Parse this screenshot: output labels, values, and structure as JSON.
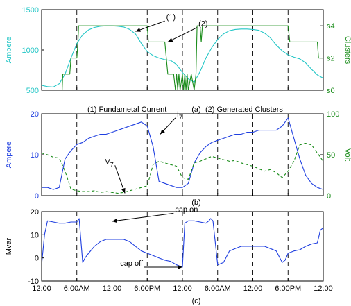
{
  "figure_captions": {
    "a": "(a)",
    "b": "(b)",
    "c": "(c)",
    "legend_note": [
      "(1) Fundametal Current",
      "(2) Generated Clusters"
    ]
  },
  "time_ticks": [
    "12:00",
    "6:00AM",
    "12:00",
    "6:00PM",
    "12:00",
    "6:00AM",
    "12:00",
    "6:00PM",
    "12:00"
  ],
  "colors": {
    "cyan": "#22c6c6",
    "green": "#1a8c1a",
    "blue": "#1f3fe0",
    "axis": "#000000"
  },
  "chart_data": [
    {
      "type": "line",
      "panel": "a",
      "x_unit": "hours",
      "xlim": [
        0,
        48
      ],
      "ylabel": "Ampere",
      "ylim": [
        500,
        1500
      ],
      "yticks": [
        500,
        1000,
        1500
      ],
      "ylabel_right": "Clusters",
      "y2lim": [
        0,
        5
      ],
      "y2ticks": [
        {
          "v": 0,
          "label": "s0"
        },
        {
          "v": 2,
          "label": "s2"
        },
        {
          "v": 4,
          "label": "s4"
        }
      ],
      "vlines": [
        6,
        12,
        18,
        24,
        30,
        36,
        42
      ],
      "series": [
        {
          "color": "cyan",
          "axis": "left",
          "x": [
            0,
            1,
            2,
            3,
            4,
            5,
            6,
            7,
            8,
            9,
            10,
            11,
            12,
            13,
            14,
            15,
            16,
            17,
            18,
            19,
            20,
            21,
            22,
            23,
            24,
            25,
            26,
            27,
            28,
            29,
            30,
            31,
            32,
            33,
            34,
            35,
            36,
            37,
            38,
            39,
            40,
            41,
            42,
            43,
            44,
            45,
            46,
            47,
            48
          ],
          "y": [
            560,
            545,
            540,
            580,
            700,
            900,
            1080,
            1190,
            1250,
            1280,
            1295,
            1300,
            1300,
            1295,
            1285,
            1255,
            1200,
            1080,
            980,
            930,
            900,
            880,
            870,
            820,
            720,
            640,
            600,
            730,
            900,
            1030,
            1130,
            1200,
            1240,
            1255,
            1260,
            1260,
            1255,
            1245,
            1210,
            1150,
            1060,
            990,
            940,
            910,
            890,
            840,
            760,
            690,
            650
          ]
        },
        {
          "color": "green",
          "axis": "right",
          "x": [
            0,
            3.5,
            3.6,
            4.8,
            5,
            6,
            6.2,
            6.3,
            18,
            18.2,
            18.4,
            21,
            21.5,
            22.5,
            22.8,
            23,
            23.2,
            23.4,
            23.6,
            24,
            24.2,
            24.4,
            24.6,
            24.8,
            25,
            25.5,
            26,
            26.3,
            26.5,
            27,
            27.2,
            27.4,
            42,
            42.3,
            42.5,
            47,
            47.2,
            48
          ],
          "y": [
            0,
            0,
            1,
            1,
            2,
            2,
            3,
            4,
            4,
            3,
            3,
            3,
            1,
            1,
            0,
            1,
            0,
            1,
            0,
            1,
            0,
            1,
            0,
            1,
            0,
            1,
            0,
            1,
            4,
            4,
            3,
            4,
            4,
            3,
            3,
            3,
            2,
            2
          ]
        }
      ],
      "annotations": [
        {
          "label": "(1)",
          "target": [
            16,
            1230
          ],
          "axis": "left",
          "text_at": [
            21,
            1360
          ]
        },
        {
          "label": "(2)",
          "target": [
            21.5,
            3
          ],
          "axis": "right",
          "text_at": [
            26.5,
            3.9
          ]
        }
      ]
    },
    {
      "type": "line",
      "panel": "b",
      "x_unit": "hours",
      "xlim": [
        0,
        48
      ],
      "ylabel": "Ampere",
      "ylim": [
        0,
        20
      ],
      "yticks": [
        0,
        10,
        20
      ],
      "ylabel_right": "Volt",
      "y2lim": [
        0,
        100
      ],
      "y2ticks": [
        {
          "v": 0,
          "label": "0"
        },
        {
          "v": 50,
          "label": "50"
        },
        {
          "v": 100,
          "label": "100"
        }
      ],
      "vlines": [
        6,
        12,
        18,
        24,
        30,
        36,
        42
      ],
      "series": [
        {
          "color": "blue",
          "axis": "left",
          "style": "solid",
          "x": [
            0,
            1,
            2,
            3,
            4,
            5,
            6,
            7,
            8,
            9,
            10,
            11,
            12,
            13,
            14,
            15,
            16,
            17,
            18,
            19,
            20,
            21,
            22,
            23,
            24,
            25,
            26,
            27,
            28,
            29,
            30,
            31,
            32,
            33,
            34,
            35,
            36,
            37,
            38,
            39,
            40,
            41,
            42,
            43,
            44,
            45,
            46,
            47,
            48
          ],
          "y": [
            2,
            2,
            1.5,
            2,
            9,
            11,
            12.5,
            13,
            14,
            14.5,
            15,
            15,
            15.5,
            16,
            16.5,
            17,
            17.5,
            18,
            17,
            12,
            3.5,
            3,
            2.5,
            2,
            2,
            3,
            8,
            10.5,
            12,
            13,
            13.5,
            14,
            14.5,
            15,
            15,
            15.5,
            15.5,
            16,
            16,
            16,
            16,
            17,
            19,
            14,
            9,
            5,
            3,
            2,
            1.5
          ]
        },
        {
          "color": "green",
          "axis": "right",
          "style": "dashed",
          "x": [
            0,
            1,
            2,
            3,
            4,
            5,
            6,
            7,
            8,
            9,
            10,
            11,
            12,
            13,
            14,
            15,
            16,
            17,
            18,
            19,
            20,
            21,
            22,
            23,
            24,
            25,
            26,
            27,
            28,
            29,
            30,
            31,
            32,
            33,
            34,
            35,
            36,
            37,
            38,
            39,
            40,
            41,
            42,
            43,
            44,
            45,
            46,
            47,
            48
          ],
          "y": [
            52,
            50,
            47,
            46,
            30,
            8,
            6,
            5,
            5,
            6,
            4,
            5,
            4,
            3,
            4,
            6,
            8,
            10,
            12,
            38,
            42,
            40,
            38,
            36,
            22,
            20,
            40,
            42,
            45,
            48,
            46,
            44,
            42,
            43,
            40,
            38,
            36,
            33,
            30,
            32,
            28,
            22,
            30,
            42,
            62,
            64,
            62,
            52,
            42
          ]
        }
      ],
      "annotations": [
        {
          "label": "I",
          "sub": "7",
          "target": [
            20.2,
            15
          ],
          "axis": "left",
          "text_at": [
            22.8,
            19
          ]
        },
        {
          "label": "V",
          "sub": "7",
          "target": [
            14.2,
            3
          ],
          "axis": "right",
          "text_at": [
            12.5,
            37
          ]
        }
      ]
    },
    {
      "type": "line",
      "panel": "c",
      "x_unit": "hours",
      "xlim": [
        0,
        48
      ],
      "xticks": [
        0,
        6,
        12,
        18,
        24,
        30,
        36,
        42,
        48
      ],
      "ylabel": "Mvar",
      "ylim": [
        -10,
        20
      ],
      "yticks": [
        -10,
        0,
        10,
        20
      ],
      "vlines": [
        6,
        12,
        18,
        24,
        30,
        36,
        42
      ],
      "series": [
        {
          "color": "blue",
          "axis": "left",
          "x": [
            0,
            0.5,
            1,
            2,
            3,
            4,
            5,
            6,
            6.4,
            7,
            7.4,
            8,
            9,
            10,
            11,
            12,
            13,
            14,
            15,
            16,
            17,
            18,
            19,
            20,
            21,
            22,
            23,
            24,
            24.4,
            25,
            26,
            27,
            28,
            28.5,
            28.8,
            29.2,
            30,
            31,
            32,
            33,
            34,
            35,
            36,
            37,
            38,
            39,
            40,
            41,
            41.5,
            42,
            43,
            44,
            45,
            46,
            47,
            47.5,
            48
          ],
          "y": [
            -3,
            10,
            16,
            15.5,
            15,
            15,
            15.5,
            15.5,
            17,
            -2,
            0,
            2,
            5,
            7,
            8,
            8,
            8,
            8,
            7,
            5,
            3,
            2,
            1,
            0,
            -1,
            -1.5,
            -3,
            -4,
            15,
            16,
            16,
            15.5,
            15,
            16,
            17,
            16,
            -3,
            -2,
            3,
            4,
            5,
            5,
            5,
            5,
            5,
            4,
            3,
            -2,
            -1,
            2,
            3,
            3.5,
            5,
            6,
            6.5,
            12,
            13
          ]
        }
      ],
      "annotations": [
        {
          "label": "cap on",
          "target": [
            12,
            15.8
          ],
          "axis": "left",
          "text_at": [
            22.5,
            19.3
          ]
        },
        {
          "label": "cap off",
          "target": [
            24,
            -4
          ],
          "axis": "left",
          "text_at": [
            17.5,
            -4
          ]
        }
      ]
    }
  ]
}
